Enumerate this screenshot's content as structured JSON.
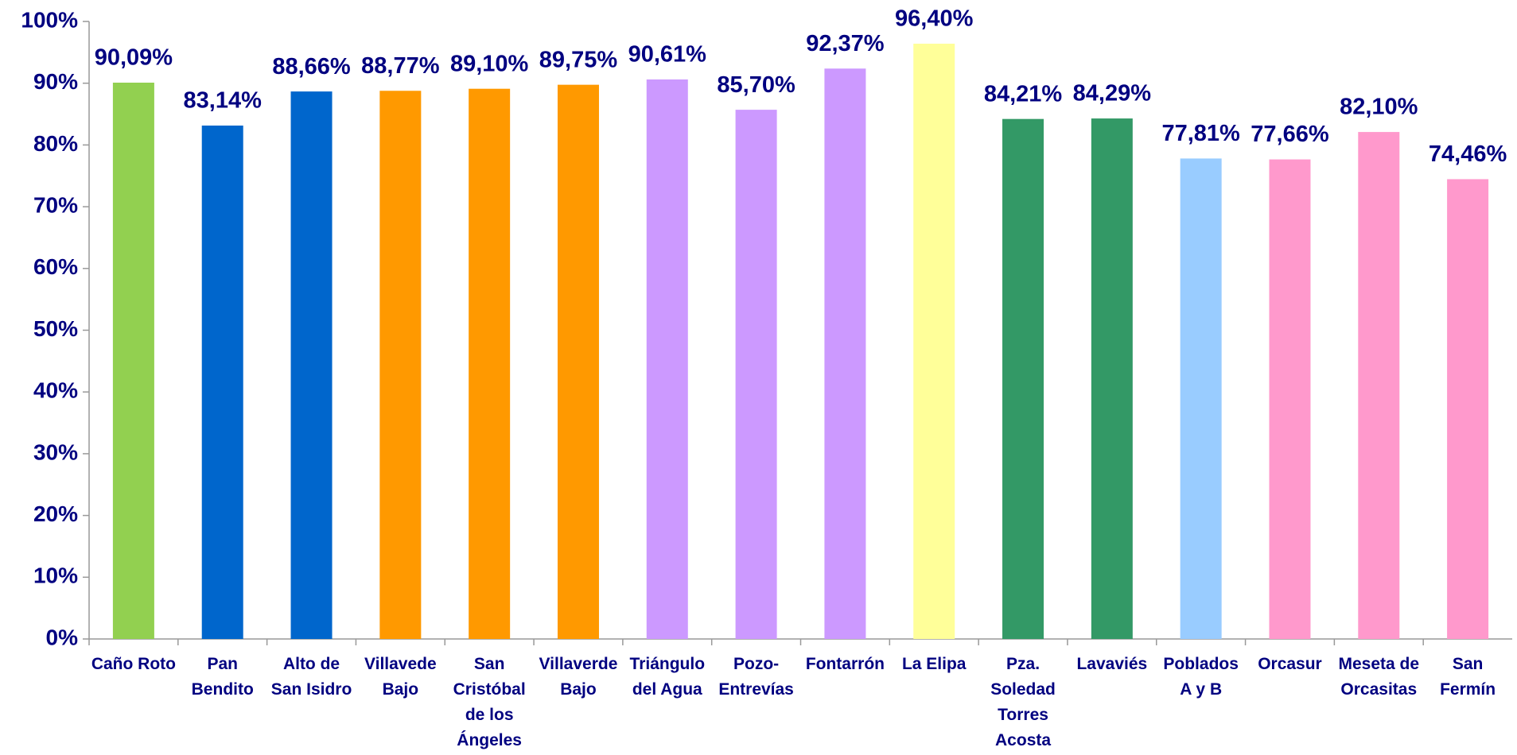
{
  "chart_data": {
    "type": "bar",
    "categories": [
      "Caño Roto",
      "Pan Bendito",
      "Alto de San Isidro",
      "Villavede Bajo",
      "San Cristóbal de los Ángeles",
      "Villaverde Bajo",
      "Triángulo del Agua",
      "Pozo-Entrevías",
      "Fontarrón",
      "La Elipa",
      "Pza. Soledad Torres Acosta",
      "Lavaviés",
      "Poblados A y B",
      "Orcasur",
      "Meseta de Orcasitas",
      "San Fermín"
    ],
    "values": [
      90.09,
      83.14,
      88.66,
      88.77,
      89.1,
      89.75,
      90.61,
      85.7,
      92.37,
      96.4,
      84.21,
      84.29,
      77.81,
      77.66,
      82.1,
      74.46
    ],
    "value_labels": [
      "90,09%",
      "83,14%",
      "88,66%",
      "88,77%",
      "89,10%",
      "89,75%",
      "90,61%",
      "85,70%",
      "92,37%",
      "96,40%",
      "84,21%",
      "84,29%",
      "77,81%",
      "77,66%",
      "82,10%",
      "74,46%"
    ],
    "colors": [
      "#92d050",
      "#0066cc",
      "#0066cc",
      "#ff9900",
      "#ff9900",
      "#ff9900",
      "#cc99ff",
      "#cc99ff",
      "#cc99ff",
      "#ffff99",
      "#339966",
      "#339966",
      "#99ccff",
      "#ff99cc",
      "#ff99cc",
      "#ff99cc"
    ],
    "ylim": [
      0,
      100
    ],
    "yticks": [
      {
        "value": 0,
        "label": "0%"
      },
      {
        "value": 10,
        "label": "10%"
      },
      {
        "value": 20,
        "label": "20%"
      },
      {
        "value": 30,
        "label": "30%"
      },
      {
        "value": 40,
        "label": "40%"
      },
      {
        "value": 50,
        "label": "50%"
      },
      {
        "value": 60,
        "label": "60%"
      },
      {
        "value": 70,
        "label": "70%"
      },
      {
        "value": 80,
        "label": "80%"
      },
      {
        "value": 90,
        "label": "90%"
      },
      {
        "value": 100,
        "label": "100%"
      }
    ],
    "grid": false
  }
}
